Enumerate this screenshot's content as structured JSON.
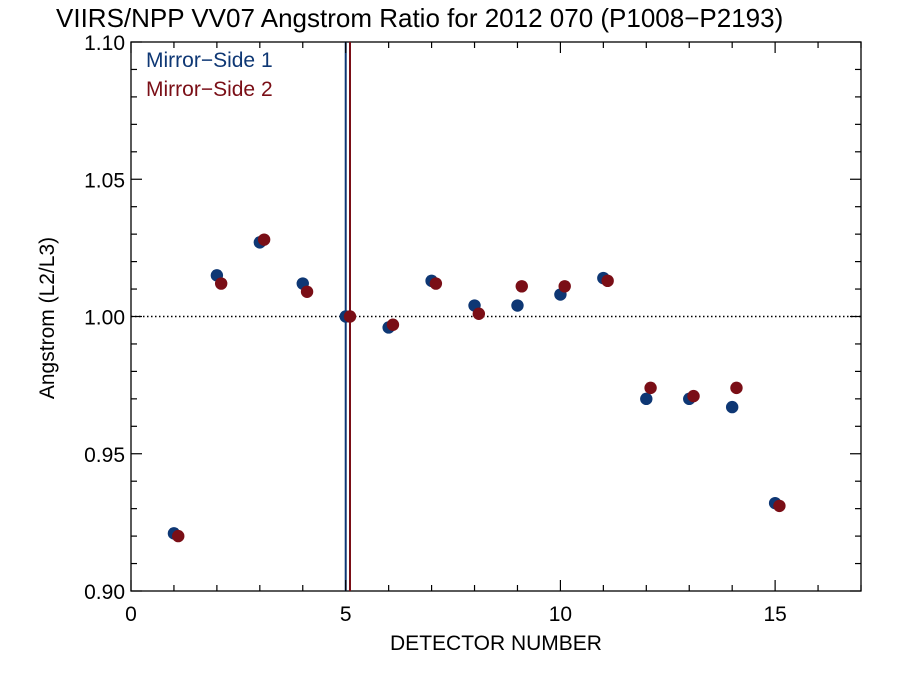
{
  "chart_data": {
    "type": "scatter",
    "title": "VIIRS/NPP VV07 Angstrom Ratio for 2012 070 (P1008−P2193)",
    "xlabel": "DETECTOR NUMBER",
    "ylabel": "Angstrom (L2/L3)",
    "xlim": [
      0,
      17
    ],
    "ylim": [
      0.9,
      1.1
    ],
    "x_ticks": [
      0,
      5,
      10,
      15
    ],
    "x_tick_labels": [
      "0",
      "5",
      "10",
      "15"
    ],
    "y_ticks": [
      0.9,
      0.95,
      1.0,
      1.05,
      1.1
    ],
    "y_tick_labels": [
      "0.90",
      "0.95",
      "1.00",
      "1.05",
      "1.10"
    ],
    "reference_line_y": 1.0,
    "reference_detector": 5,
    "legend_position": "top-left",
    "series": [
      {
        "name": "Mirror−Side 1",
        "color": "#0e3774",
        "x_offset": 0,
        "x": [
          1,
          2,
          3,
          4,
          5,
          6,
          7,
          8,
          9,
          10,
          11,
          12,
          13,
          14,
          15
        ],
        "values": [
          0.921,
          1.015,
          1.027,
          1.012,
          1.0,
          0.996,
          1.013,
          1.004,
          1.004,
          1.008,
          1.014,
          0.97,
          0.97,
          0.967,
          0.932
        ]
      },
      {
        "name": "Mirror−Side 2",
        "color": "#7a0e16",
        "x_offset": 0.1,
        "x": [
          1,
          2,
          3,
          4,
          5,
          6,
          7,
          8,
          9,
          10,
          11,
          12,
          13,
          14,
          15
        ],
        "values": [
          0.92,
          1.012,
          1.028,
          1.009,
          1.0,
          0.997,
          1.012,
          1.001,
          1.011,
          1.011,
          1.013,
          0.974,
          0.971,
          0.974,
          0.931
        ]
      }
    ]
  }
}
